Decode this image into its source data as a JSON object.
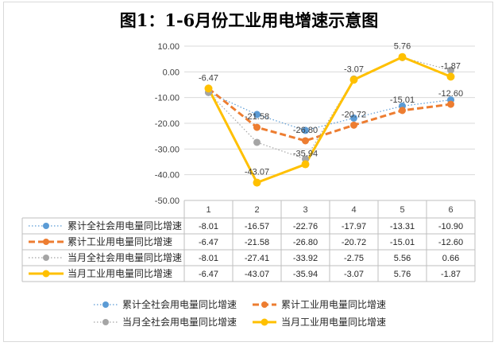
{
  "title": "图1：1-6月份工业用电增速示意图",
  "chart_data": {
    "type": "line",
    "categories": [
      "1",
      "2",
      "3",
      "4",
      "5",
      "6"
    ],
    "ylim": [
      -50,
      10
    ],
    "yticks": [
      "10.00",
      "0.00",
      "-10.00",
      "-20.00",
      "-30.00",
      "-40.00",
      "-50.00"
    ],
    "ytick_values": [
      10,
      0,
      -10,
      -20,
      -30,
      -40,
      -50
    ],
    "grid": true,
    "legend_position": "bottom",
    "series": [
      {
        "name": "累计全社会用电量同比增速",
        "values": [
          -8.01,
          -16.57,
          -22.76,
          -17.97,
          -13.31,
          -10.9
        ],
        "display": [
          "-8.01",
          "-16.57",
          "-22.76",
          "-17.97",
          "-13.31",
          "-10.90"
        ],
        "color": "#5b9bd5",
        "style": "dotted",
        "width": 1.2,
        "marker": 4.5
      },
      {
        "name": "累计工业用电量同比增速",
        "values": [
          -6.47,
          -21.58,
          -26.8,
          -20.72,
          -15.01,
          -12.6
        ],
        "display": [
          "-6.47",
          "-21.58",
          "-26.80",
          "-20.72",
          "-15.01",
          "-12.60"
        ],
        "color": "#ed7d31",
        "style": "dashed",
        "width": 3,
        "marker": 4.5
      },
      {
        "name": "当月全社会用电量同比增速",
        "values": [
          -8.01,
          -27.41,
          -33.92,
          -2.75,
          5.56,
          0.66
        ],
        "display": [
          "-8.01",
          "-27.41",
          "-33.92",
          "-2.75",
          "5.56",
          "0.66"
        ],
        "color": "#a5a5a5",
        "style": "dotted",
        "width": 1.2,
        "marker": 4.5
      },
      {
        "name": "当月工业用电量同比增速",
        "values": [
          -6.47,
          -43.07,
          -35.94,
          -3.07,
          5.76,
          -1.87
        ],
        "display": [
          "-6.47",
          "-43.07",
          "-35.94",
          "-3.07",
          "5.76",
          "-1.87"
        ],
        "color": "#ffc000",
        "style": "solid",
        "width": 3,
        "marker": 5
      }
    ],
    "data_labels": [
      {
        "series": 1,
        "index": 1,
        "text": "-21.58"
      },
      {
        "series": 1,
        "index": 2,
        "text": "-26.80"
      },
      {
        "series": 1,
        "index": 3,
        "text": "-20.72"
      },
      {
        "series": 1,
        "index": 4,
        "text": "-15.01"
      },
      {
        "series": 1,
        "index": 5,
        "text": "-12.60"
      },
      {
        "series": 3,
        "index": 0,
        "text": "-6.47"
      },
      {
        "series": 3,
        "index": 1,
        "text": "-43.07"
      },
      {
        "series": 3,
        "index": 2,
        "text": "-35.94"
      },
      {
        "series": 3,
        "index": 3,
        "text": "-3.07"
      },
      {
        "series": 3,
        "index": 4,
        "text": "5.76"
      },
      {
        "series": 3,
        "index": 5,
        "text": "-1.87"
      }
    ]
  }
}
